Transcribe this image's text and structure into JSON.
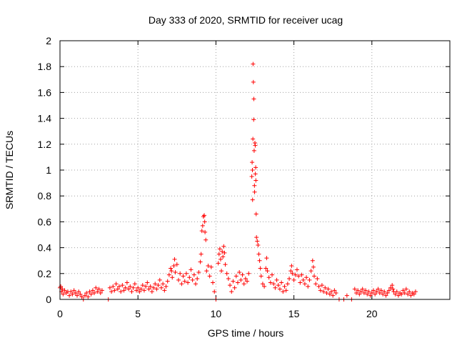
{
  "chart_data": {
    "type": "scatter",
    "title": "Day 333 of 2020, SRMTID for receiver ucag",
    "xlabel": "GPS time / hours",
    "ylabel": "SRMTID / TECUs",
    "xlim": [
      0,
      25
    ],
    "ylim": [
      0,
      2
    ],
    "xticks": [
      0,
      5,
      10,
      15,
      20
    ],
    "yticks": [
      0,
      0.2,
      0.4,
      0.6,
      0.8,
      1,
      1.2,
      1.4,
      1.6,
      1.8,
      2
    ],
    "xtick_labels": [
      "0",
      "5",
      "10",
      "15",
      "20"
    ],
    "ytick_labels": [
      "0",
      "0.2",
      "0.4",
      "0.6",
      "0.8",
      "1",
      "1.2",
      "1.4",
      "1.6",
      "1.8",
      "2"
    ],
    "grid": true,
    "marker": "+",
    "color": "#ff0000",
    "series": [
      {
        "name": "SRMTID",
        "points": [
          [
            0.0,
            0.09
          ],
          [
            0.05,
            0.1
          ],
          [
            0.1,
            0.06
          ],
          [
            0.15,
            0.08
          ],
          [
            0.2,
            0.04
          ],
          [
            0.3,
            0.07
          ],
          [
            0.4,
            0.05
          ],
          [
            0.5,
            0.06
          ],
          [
            0.6,
            0.03
          ],
          [
            0.7,
            0.06
          ],
          [
            0.8,
            0.04
          ],
          [
            0.9,
            0.07
          ],
          [
            1.0,
            0.05
          ],
          [
            1.1,
            0.03
          ],
          [
            1.2,
            0.06
          ],
          [
            1.3,
            0.04
          ],
          [
            1.4,
            0.02
          ],
          [
            1.5,
            0.0
          ],
          [
            1.6,
            0.03
          ],
          [
            1.7,
            0.05
          ],
          [
            1.8,
            0.02
          ],
          [
            1.9,
            0.06
          ],
          [
            2.0,
            0.04
          ],
          [
            2.1,
            0.07
          ],
          [
            2.2,
            0.05
          ],
          [
            2.3,
            0.09
          ],
          [
            2.4,
            0.06
          ],
          [
            2.5,
            0.08
          ],
          [
            2.6,
            0.05
          ],
          [
            2.7,
            0.07
          ],
          [
            3.1,
            0.0
          ],
          [
            3.2,
            0.09
          ],
          [
            3.3,
            0.06
          ],
          [
            3.4,
            0.1
          ],
          [
            3.5,
            0.07
          ],
          [
            3.6,
            0.12
          ],
          [
            3.7,
            0.08
          ],
          [
            3.8,
            0.1
          ],
          [
            3.9,
            0.06
          ],
          [
            4.0,
            0.11
          ],
          [
            4.1,
            0.07
          ],
          [
            4.2,
            0.09
          ],
          [
            4.3,
            0.13
          ],
          [
            4.4,
            0.08
          ],
          [
            4.5,
            0.1
          ],
          [
            4.6,
            0.06
          ],
          [
            4.7,
            0.09
          ],
          [
            4.8,
            0.12
          ],
          [
            4.9,
            0.07
          ],
          [
            5.0,
            0.09
          ],
          [
            5.1,
            0.06
          ],
          [
            5.2,
            0.08
          ],
          [
            5.3,
            0.11
          ],
          [
            5.4,
            0.07
          ],
          [
            5.5,
            0.1
          ],
          [
            5.6,
            0.13
          ],
          [
            5.7,
            0.08
          ],
          [
            5.8,
            0.1
          ],
          [
            5.9,
            0.06
          ],
          [
            6.0,
            0.09
          ],
          [
            6.1,
            0.12
          ],
          [
            6.2,
            0.08
          ],
          [
            6.3,
            0.11
          ],
          [
            6.4,
            0.15
          ],
          [
            6.5,
            0.09
          ],
          [
            6.6,
            0.12
          ],
          [
            6.7,
            0.07
          ],
          [
            6.8,
            0.1
          ],
          [
            6.9,
            0.14
          ],
          [
            7.0,
            0.19
          ],
          [
            7.1,
            0.24
          ],
          [
            7.15,
            0.22
          ],
          [
            7.2,
            0.17
          ],
          [
            7.3,
            0.26
          ],
          [
            7.35,
            0.31
          ],
          [
            7.4,
            0.21
          ],
          [
            7.5,
            0.27
          ],
          [
            7.6,
            0.15
          ],
          [
            7.7,
            0.2
          ],
          [
            7.8,
            0.12
          ],
          [
            7.9,
            0.18
          ],
          [
            8.0,
            0.14
          ],
          [
            8.1,
            0.2
          ],
          [
            8.2,
            0.13
          ],
          [
            8.3,
            0.17
          ],
          [
            8.4,
            0.23
          ],
          [
            8.5,
            0.15
          ],
          [
            8.6,
            0.19
          ],
          [
            8.7,
            0.12
          ],
          [
            8.8,
            0.16
          ],
          [
            8.9,
            0.21
          ],
          [
            9.0,
            0.29
          ],
          [
            9.05,
            0.35
          ],
          [
            9.1,
            0.53
          ],
          [
            9.15,
            0.57
          ],
          [
            9.2,
            0.64
          ],
          [
            9.25,
            0.65
          ],
          [
            9.28,
            0.6
          ],
          [
            9.3,
            0.52
          ],
          [
            9.35,
            0.46
          ],
          [
            9.4,
            0.22
          ],
          [
            9.5,
            0.26
          ],
          [
            9.6,
            0.18
          ],
          [
            9.7,
            0.25
          ],
          [
            9.8,
            0.13
          ],
          [
            9.9,
            0.06
          ],
          [
            10.0,
            0.0
          ],
          [
            10.15,
            0.28
          ],
          [
            10.2,
            0.35
          ],
          [
            10.25,
            0.39
          ],
          [
            10.3,
            0.31
          ],
          [
            10.35,
            0.22
          ],
          [
            10.4,
            0.37
          ],
          [
            10.45,
            0.33
          ],
          [
            10.5,
            0.41
          ],
          [
            10.55,
            0.36
          ],
          [
            10.6,
            0.27
          ],
          [
            10.7,
            0.2
          ],
          [
            10.8,
            0.16
          ],
          [
            10.9,
            0.11
          ],
          [
            11.0,
            0.06
          ],
          [
            11.1,
            0.14
          ],
          [
            11.2,
            0.09
          ],
          [
            11.3,
            0.18
          ],
          [
            11.4,
            0.13
          ],
          [
            11.5,
            0.21
          ],
          [
            11.6,
            0.15
          ],
          [
            11.7,
            0.19
          ],
          [
            11.8,
            0.12
          ],
          [
            11.9,
            0.16
          ],
          [
            12.0,
            0.14
          ],
          [
            12.1,
            0.2
          ],
          [
            12.3,
            0.95
          ],
          [
            12.32,
            1.06
          ],
          [
            12.34,
            1.0
          ],
          [
            12.35,
            0.77
          ],
          [
            12.37,
            1.24
          ],
          [
            12.38,
            1.82
          ],
          [
            12.4,
            1.68
          ],
          [
            12.42,
            1.39
          ],
          [
            12.43,
            1.55
          ],
          [
            12.45,
            1.15
          ],
          [
            12.47,
            0.88
          ],
          [
            12.48,
            0.83
          ],
          [
            12.5,
            1.21
          ],
          [
            12.52,
            1.19
          ],
          [
            12.53,
            0.97
          ],
          [
            12.55,
            1.02
          ],
          [
            12.56,
            0.92
          ],
          [
            12.58,
            0.66
          ],
          [
            12.6,
            0.48
          ],
          [
            12.65,
            0.45
          ],
          [
            12.7,
            0.42
          ],
          [
            12.75,
            0.35
          ],
          [
            12.8,
            0.3
          ],
          [
            12.85,
            0.24
          ],
          [
            12.9,
            0.18
          ],
          [
            13.0,
            0.12
          ],
          [
            13.1,
            0.1
          ],
          [
            13.2,
            0.24
          ],
          [
            13.25,
            0.32
          ],
          [
            13.3,
            0.22
          ],
          [
            13.4,
            0.17
          ],
          [
            13.5,
            0.13
          ],
          [
            13.6,
            0.19
          ],
          [
            13.7,
            0.12
          ],
          [
            13.8,
            0.09
          ],
          [
            13.9,
            0.15
          ],
          [
            14.0,
            0.11
          ],
          [
            14.1,
            0.08
          ],
          [
            14.2,
            0.13
          ],
          [
            14.3,
            0.06
          ],
          [
            14.4,
            0.1
          ],
          [
            14.5,
            0.07
          ],
          [
            14.6,
            0.12
          ],
          [
            14.7,
            0.16
          ],
          [
            14.8,
            0.22
          ],
          [
            14.85,
            0.26
          ],
          [
            14.9,
            0.2
          ],
          [
            15.0,
            0.15
          ],
          [
            15.1,
            0.19
          ],
          [
            15.2,
            0.23
          ],
          [
            15.3,
            0.18
          ],
          [
            15.4,
            0.13
          ],
          [
            15.5,
            0.19
          ],
          [
            15.6,
            0.15
          ],
          [
            15.7,
            0.12
          ],
          [
            15.8,
            0.17
          ],
          [
            15.9,
            0.1
          ],
          [
            16.0,
            0.15
          ],
          [
            16.1,
            0.22
          ],
          [
            16.2,
            0.3
          ],
          [
            16.25,
            0.25
          ],
          [
            16.3,
            0.18
          ],
          [
            16.4,
            0.12
          ],
          [
            16.5,
            0.16
          ],
          [
            16.6,
            0.1
          ],
          [
            16.7,
            0.07
          ],
          [
            16.8,
            0.11
          ],
          [
            16.9,
            0.06
          ],
          [
            17.0,
            0.09
          ],
          [
            17.1,
            0.05
          ],
          [
            17.2,
            0.08
          ],
          [
            17.3,
            0.04
          ],
          [
            17.4,
            0.06
          ],
          [
            17.5,
            0.03
          ],
          [
            17.6,
            0.07
          ],
          [
            17.7,
            0.05
          ],
          [
            17.9,
            0.0
          ],
          [
            18.2,
            0.0
          ],
          [
            18.4,
            0.03
          ],
          [
            18.7,
            0.0
          ],
          [
            18.9,
            0.08
          ],
          [
            19.0,
            0.05
          ],
          [
            19.1,
            0.07
          ],
          [
            19.2,
            0.04
          ],
          [
            19.3,
            0.06
          ],
          [
            19.4,
            0.08
          ],
          [
            19.5,
            0.05
          ],
          [
            19.6,
            0.07
          ],
          [
            19.7,
            0.04
          ],
          [
            19.8,
            0.06
          ],
          [
            19.9,
            0.03
          ],
          [
            20.0,
            0.05
          ],
          [
            20.1,
            0.07
          ],
          [
            20.2,
            0.04
          ],
          [
            20.3,
            0.06
          ],
          [
            20.4,
            0.08
          ],
          [
            20.5,
            0.05
          ],
          [
            20.6,
            0.07
          ],
          [
            20.7,
            0.04
          ],
          [
            20.8,
            0.06
          ],
          [
            20.9,
            0.03
          ],
          [
            21.0,
            0.05
          ],
          [
            21.1,
            0.07
          ],
          [
            21.2,
            0.09
          ],
          [
            21.3,
            0.11
          ],
          [
            21.35,
            0.08
          ],
          [
            21.4,
            0.06
          ],
          [
            21.5,
            0.04
          ],
          [
            21.6,
            0.06
          ],
          [
            21.7,
            0.03
          ],
          [
            21.8,
            0.05
          ],
          [
            21.9,
            0.04
          ],
          [
            22.0,
            0.07
          ],
          [
            22.1,
            0.05
          ],
          [
            22.2,
            0.08
          ],
          [
            22.3,
            0.04
          ],
          [
            22.4,
            0.06
          ],
          [
            22.5,
            0.03
          ],
          [
            22.6,
            0.05
          ],
          [
            22.7,
            0.04
          ],
          [
            22.8,
            0.06
          ]
        ]
      }
    ]
  }
}
